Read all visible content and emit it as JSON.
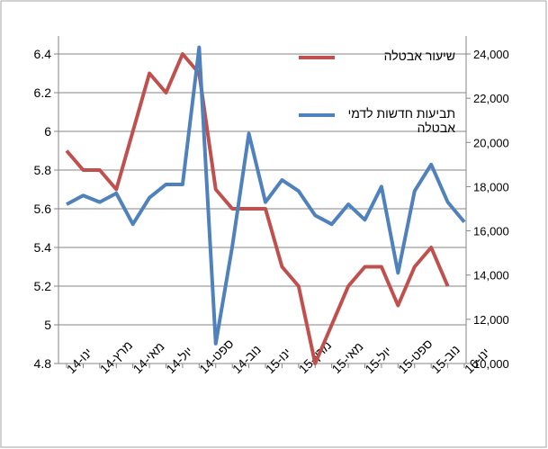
{
  "chart_data": {
    "type": "line",
    "categories": [
      "ינו-14",
      null,
      "מרץ-14",
      null,
      "מאי-14",
      null,
      "יול-14",
      null,
      "ספט-14",
      null,
      "נוב-14",
      null,
      "ינו-15",
      null,
      "מרץ-15",
      null,
      "מאי-15",
      null,
      "יול-15",
      null,
      "ספט-15",
      null,
      "נוב-15",
      null,
      "ינו-16"
    ],
    "series": [
      {
        "name": "שיעור אבטלה",
        "color": "#c0504d",
        "axis": "y",
        "values": [
          5.9,
          5.8,
          5.8,
          5.7,
          6.0,
          6.3,
          6.2,
          6.4,
          6.3,
          5.7,
          5.6,
          5.6,
          5.6,
          5.3,
          5.2,
          4.8,
          5.0,
          5.2,
          5.3,
          5.3,
          5.1,
          5.3,
          5.4,
          5.2,
          null
        ]
      },
      {
        "name": "תביעות חדשות לדמי אבטלה",
        "color": "#4f81bd",
        "axis": "y2",
        "values": [
          17200,
          17600,
          17300,
          17700,
          16300,
          17500,
          18100,
          18100,
          24300,
          10900,
          15300,
          20400,
          17300,
          18300,
          17800,
          16700,
          16300,
          17200,
          16500,
          18000,
          14100,
          17800,
          19000,
          17300,
          16400
        ]
      }
    ],
    "ylim": [
      4.8,
      6.4
    ],
    "yticks": [
      {
        "value": 4.8,
        "label": "4.8"
      },
      5,
      {
        "value": 5.2,
        "label": "5.2"
      },
      {
        "value": 5.4,
        "label": "5.4"
      },
      {
        "value": 5.6,
        "label": "5.6"
      },
      {
        "value": 5.8,
        "label": "5.8"
      },
      6,
      {
        "value": 6.2,
        "label": "6.2"
      },
      {
        "value": 6.4,
        "label": "6.4"
      }
    ],
    "y2lim": [
      10000,
      24000
    ],
    "y2ticks": [
      {
        "value": 10000,
        "label": "10,000"
      },
      {
        "value": 12000,
        "label": "12,000"
      },
      {
        "value": 14000,
        "label": "14,000"
      },
      {
        "value": 16000,
        "label": "16,000"
      },
      {
        "value": 18000,
        "label": "18,000"
      },
      {
        "value": 20000,
        "label": "20,000"
      },
      {
        "value": 22000,
        "label": "22,000"
      },
      {
        "value": 24000,
        "label": "24,000"
      }
    ],
    "grid": true
  }
}
